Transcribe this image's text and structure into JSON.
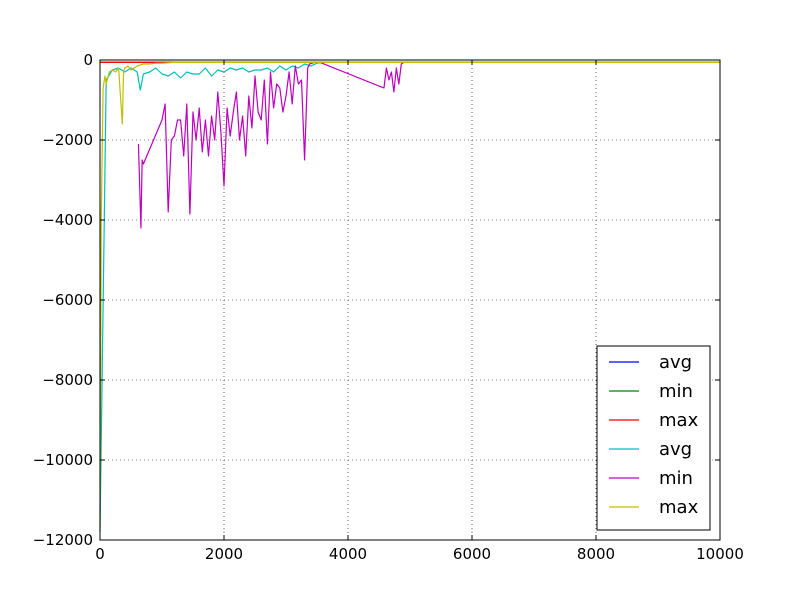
{
  "chart_data": {
    "type": "line",
    "title": "",
    "xlabel": "",
    "ylabel": "",
    "xlim": [
      0,
      10000
    ],
    "ylim": [
      -12000,
      0
    ],
    "xticks": [
      0,
      2000,
      4000,
      6000,
      8000,
      10000
    ],
    "yticks": [
      0,
      -2000,
      -4000,
      -6000,
      -8000,
      -10000,
      -12000
    ],
    "xtick_labels": [
      "0",
      "2000",
      "4000",
      "6000",
      "8000",
      "10000"
    ],
    "ytick_labels": [
      "0",
      "−2000",
      "−4000",
      "−6000",
      "−8000",
      "−10000",
      "−12000"
    ],
    "grid": true,
    "legend_position": "lower-right",
    "series": [
      {
        "name": "avg",
        "color": "#0000ff",
        "x": [
          0,
          100,
          10000
        ],
        "y": [
          -60,
          -60,
          -60
        ]
      },
      {
        "name": "min",
        "color": "#008000",
        "x": [
          0,
          100,
          10000
        ],
        "y": [
          -60,
          -60,
          -60
        ]
      },
      {
        "name": "max",
        "color": "#ff0000",
        "x": [
          0,
          100,
          10000
        ],
        "y": [
          -60,
          -60,
          -60
        ]
      },
      {
        "name": "avg",
        "color": "#00bfbf",
        "x": [
          0,
          100,
          200,
          300,
          400,
          500,
          600,
          650,
          700,
          800,
          900,
          1000,
          1100,
          1200,
          1300,
          1400,
          1500,
          1600,
          1700,
          1800,
          1900,
          2000,
          2100,
          2200,
          2300,
          2400,
          2500,
          2600,
          2700,
          2800,
          2900,
          3000,
          3100,
          3200,
          3300,
          3400,
          3500,
          3600,
          4000,
          6000,
          8000,
          10000
        ],
        "y": [
          -11800,
          -500,
          -250,
          -200,
          -300,
          -200,
          -300,
          -750,
          -350,
          -300,
          -200,
          -350,
          -400,
          -300,
          -450,
          -300,
          -350,
          -350,
          -200,
          -400,
          -250,
          -300,
          -200,
          -250,
          -200,
          -300,
          -250,
          -250,
          -200,
          -300,
          -150,
          -250,
          -150,
          -200,
          -100,
          -150,
          -80,
          -60,
          -60,
          -60,
          -60,
          -60
        ]
      },
      {
        "name": "min",
        "color": "#bf00bf",
        "x": [
          620,
          660,
          680,
          700,
          1000,
          1050,
          1100,
          1150,
          1200,
          1250,
          1300,
          1350,
          1400,
          1450,
          1500,
          1550,
          1600,
          1650,
          1700,
          1750,
          1800,
          1850,
          1900,
          1950,
          2000,
          2050,
          2100,
          2150,
          2200,
          2250,
          2300,
          2350,
          2400,
          2450,
          2500,
          2550,
          2600,
          2650,
          2700,
          2750,
          2800,
          2850,
          2900,
          2950,
          3000,
          3050,
          3100,
          3150,
          3200,
          3250,
          3300,
          3350,
          3380,
          3420,
          3460,
          3500,
          3550,
          4580,
          4620,
          4660,
          4700,
          4740,
          4780,
          4820,
          4860,
          4900
        ],
        "y": [
          -2100,
          -4200,
          -2500,
          -2600,
          -1500,
          -1100,
          -3800,
          -2000,
          -1900,
          -1500,
          -1500,
          -2400,
          -1100,
          -3850,
          -1300,
          -2000,
          -1200,
          -2300,
          -1500,
          -2400,
          -1400,
          -2000,
          -800,
          -1800,
          -3150,
          -1200,
          -1900,
          -1300,
          -800,
          -2000,
          -1400,
          -2400,
          -900,
          -1700,
          -400,
          -1300,
          -1500,
          -500,
          -2100,
          -300,
          -1200,
          -600,
          -700,
          -1300,
          -900,
          -300,
          -1100,
          -150,
          -600,
          -500,
          -2500,
          -200,
          -100,
          -80,
          -60,
          -60,
          -60,
          -700,
          -200,
          -500,
          -300,
          -800,
          -200,
          -600,
          -100,
          -60
        ]
      },
      {
        "name": "max",
        "color": "#bfbf00",
        "x": [
          0,
          20,
          50,
          80,
          100,
          150,
          200,
          250,
          300,
          330,
          360,
          380,
          400,
          450,
          500,
          600,
          700,
          800,
          900,
          1000,
          1200,
          1400,
          1600,
          1800,
          2000,
          2500,
          3000,
          4000,
          6000,
          8000,
          10000
        ],
        "y": [
          -11700,
          -4000,
          -700,
          -400,
          -600,
          -300,
          -250,
          -300,
          -200,
          -900,
          -1600,
          -300,
          -200,
          -150,
          -250,
          -150,
          -100,
          -100,
          -80,
          -80,
          -60,
          -60,
          -60,
          -60,
          -60,
          -60,
          -60,
          -60,
          -60,
          -60,
          -60
        ]
      }
    ]
  }
}
